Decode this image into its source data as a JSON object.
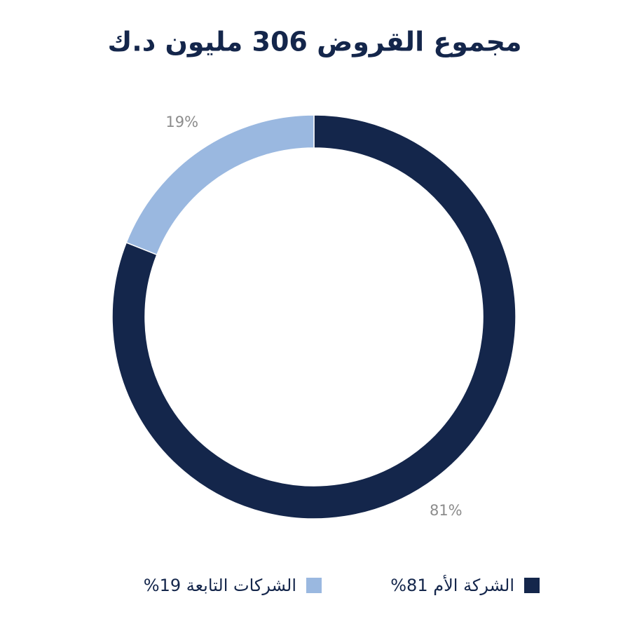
{
  "chart_data": {
    "type": "donut",
    "title": "مجموع القروض 306 مليون د.ك",
    "categories": [
      "الشركة الأم 81%",
      "الشركات التابعة 19%"
    ],
    "values": [
      81,
      19
    ],
    "value_labels": [
      "81%",
      "19%"
    ],
    "colors": [
      "#14264b",
      "#9ab8e0"
    ]
  }
}
